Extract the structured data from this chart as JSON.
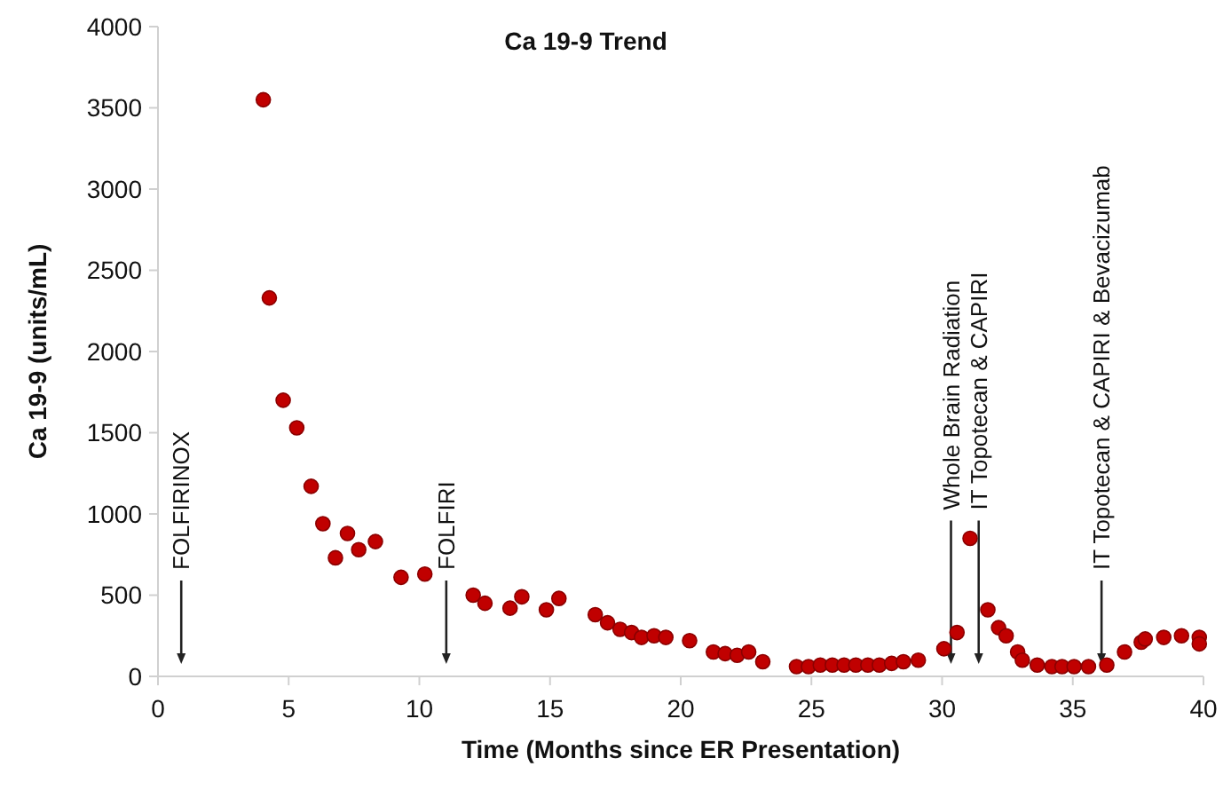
{
  "chart_data": {
    "type": "scatter",
    "title": "Ca 19-9 Trend",
    "xlabel": "Time (Months since ER Presentation)",
    "ylabel": "Ca 19-9 (units/mL)",
    "xlim": [
      0,
      40
    ],
    "xticks": [
      0,
      5,
      10,
      15,
      20,
      25,
      30,
      35,
      40
    ],
    "ylim": [
      0,
      4000
    ],
    "yticks": [
      0,
      500,
      1000,
      1500,
      2000,
      2500,
      3000,
      3500,
      4000
    ],
    "grid": false,
    "marker": "circle",
    "series": [
      {
        "color": "#c00000",
        "x": [
          4.03,
          4.26,
          4.79,
          5.31,
          5.86,
          6.31,
          6.79,
          7.25,
          7.68,
          8.32,
          9.3,
          10.21,
          12.06,
          12.51,
          13.47,
          13.92,
          14.86,
          15.34,
          16.73,
          17.2,
          17.68,
          18.12,
          18.5,
          18.98,
          19.43,
          20.34,
          21.25,
          21.7,
          22.16,
          22.6,
          23.14,
          24.43,
          24.89,
          25.34,
          25.8,
          26.25,
          26.7,
          27.16,
          27.6,
          28.07,
          28.52,
          29.09,
          30.07,
          30.57,
          31.07,
          31.75,
          32.16,
          32.45,
          32.89,
          33.07,
          33.64,
          34.2,
          34.59,
          35.05,
          35.6,
          36.3,
          36.98,
          37.62,
          37.77,
          38.48,
          39.16,
          39.84,
          39.84
        ],
        "values": [
          3550,
          2330,
          1700,
          1530,
          1170,
          940,
          730,
          880,
          780,
          830,
          610,
          630,
          500,
          450,
          420,
          490,
          410,
          480,
          380,
          330,
          290,
          270,
          240,
          250,
          240,
          220,
          150,
          140,
          130,
          150,
          90,
          60,
          60,
          70,
          70,
          70,
          70,
          70,
          70,
          80,
          90,
          100,
          170,
          270,
          850,
          410,
          300,
          250,
          150,
          100,
          70,
          60,
          60,
          60,
          60,
          70,
          150,
          210,
          230,
          240,
          250,
          240,
          200
        ]
      }
    ],
    "ref_lines": [
      {
        "axis": "x",
        "value": 0.89,
        "label": "FOLFIRINOX"
      },
      {
        "axis": "x",
        "value": 11.03,
        "label": "FOLFIRI"
      },
      {
        "axis": "x",
        "value": 30.34,
        "label": "Whole Brain Radiation"
      },
      {
        "axis": "x",
        "value": 31.4,
        "label": "IT Topotecan & CAPIRI"
      },
      {
        "axis": "x",
        "value": 36.1,
        "label": "IT Topotecan & CAPIRI & Bevacizumab"
      }
    ]
  }
}
